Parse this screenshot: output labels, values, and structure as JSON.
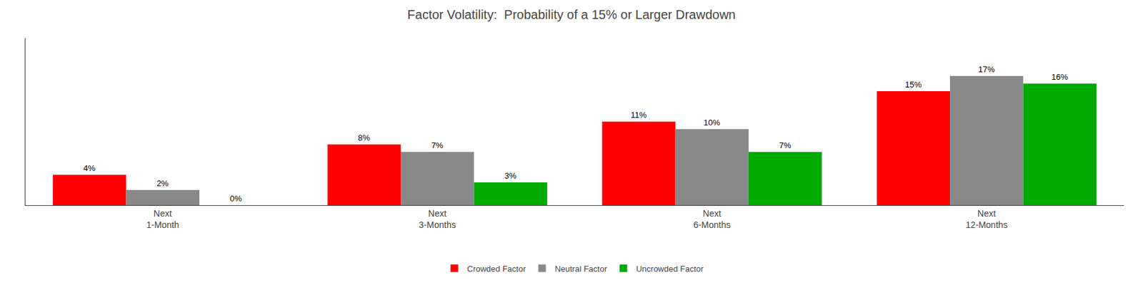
{
  "chart_data": {
    "type": "bar",
    "title": "Factor Volatility:  Probability of a 15% or Larger Drawdown",
    "categories": [
      "Next\n1-Month",
      "Next\n3-Months",
      "Next\n6-Months",
      "Next\n12-Months"
    ],
    "series": [
      {
        "name": "Crowded Factor",
        "color": "#ff0000",
        "values": [
          4,
          8,
          11,
          15
        ],
        "value_labels": [
          "4%",
          "8%",
          "11%",
          "15%"
        ]
      },
      {
        "name": "Neutral Factor",
        "color": "#888888",
        "values": [
          2,
          7,
          10,
          17
        ],
        "value_labels": [
          "2%",
          "7%",
          "10%",
          "17%"
        ]
      },
      {
        "name": "Uncrowded Factor",
        "color": "#00aa00",
        "values": [
          0,
          3,
          7,
          16
        ],
        "value_labels": [
          "0%",
          "3%",
          "7%",
          "16%"
        ]
      }
    ],
    "ylim": [
      0,
      22
    ],
    "grid": false,
    "legend": "bottom",
    "data_labels": true,
    "tick_labels": "x"
  }
}
